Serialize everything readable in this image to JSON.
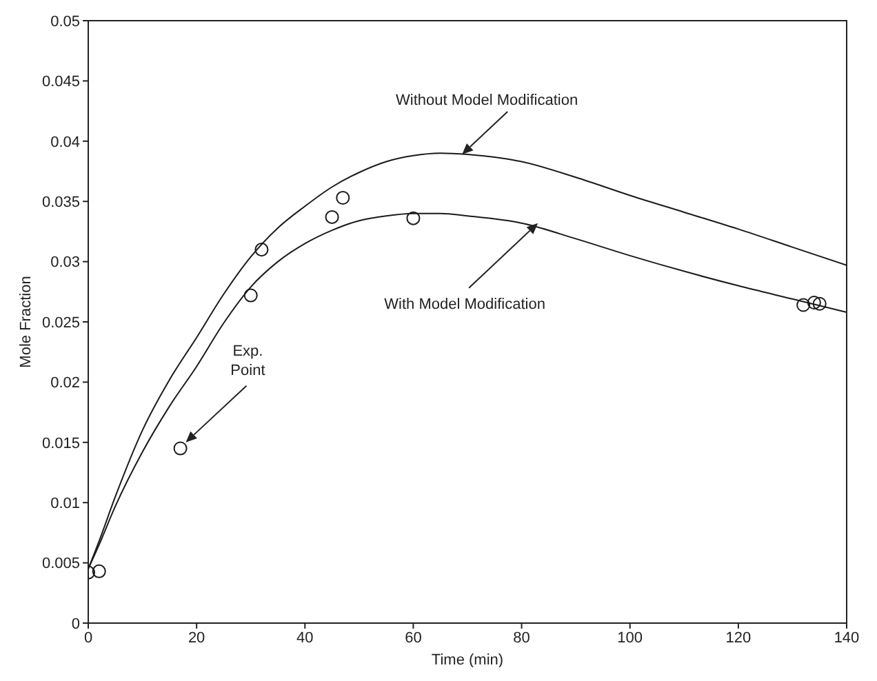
{
  "chart_data": {
    "type": "line",
    "xlabel": "Time (min)",
    "ylabel": "Mole Fraction",
    "xlim": [
      0,
      140
    ],
    "xticks": [
      0,
      20,
      40,
      60,
      80,
      100,
      120,
      140
    ],
    "ylim": [
      0,
      0.05
    ],
    "yticks": [
      0,
      0.005,
      0.01,
      0.015,
      0.02,
      0.025,
      0.03,
      0.035,
      0.04,
      0.045,
      0.05
    ],
    "series": [
      {
        "color": "#1a1a1a",
        "marker": "none",
        "line_style": "solid",
        "x": [
          0,
          2,
          5,
          10,
          15,
          20,
          25,
          30,
          35,
          40,
          45,
          50,
          55,
          60,
          65,
          70,
          80,
          90,
          100,
          110,
          120,
          130,
          140
        ],
        "values": [
          0.0045,
          0.0068,
          0.0105,
          0.016,
          0.0202,
          0.0237,
          0.0273,
          0.0304,
          0.0328,
          0.0346,
          0.0362,
          0.0374,
          0.0383,
          0.0388,
          0.039,
          0.0389,
          0.0383,
          0.037,
          0.0355,
          0.0341,
          0.0327,
          0.0312,
          0.0297
        ]
      },
      {
        "color": "#1a1a1a",
        "marker": "none",
        "line_style": "solid",
        "x": [
          0,
          2,
          5,
          10,
          15,
          20,
          25,
          30,
          35,
          40,
          45,
          50,
          55,
          60,
          65,
          70,
          80,
          90,
          100,
          110,
          120,
          130,
          140
        ],
        "values": [
          0.0045,
          0.0065,
          0.0097,
          0.0142,
          0.018,
          0.0213,
          0.0249,
          0.0279,
          0.03,
          0.0315,
          0.0326,
          0.0334,
          0.0338,
          0.034,
          0.034,
          0.0338,
          0.0332,
          0.0319,
          0.0305,
          0.0292,
          0.028,
          0.0269,
          0.0258
        ]
      },
      {
        "type": "scatter",
        "color": "#1a1a1a",
        "marker": "circle",
        "x": [
          0,
          2,
          17,
          30,
          32,
          45,
          47,
          60,
          132,
          134,
          135
        ],
        "values": [
          0.0042,
          0.0043,
          0.0145,
          0.0272,
          0.031,
          0.0337,
          0.0353,
          0.0336,
          0.0264,
          0.0266,
          0.0265
        ]
      }
    ],
    "annotations": [
      {
        "text": "Without Model Modification",
        "x": 69,
        "y": 0.0389
      },
      {
        "text": "With Model Modification",
        "x": 83,
        "y": 0.0332
      },
      {
        "text": "Exp. Point",
        "x": 18,
        "y": 0.015
      }
    ]
  }
}
